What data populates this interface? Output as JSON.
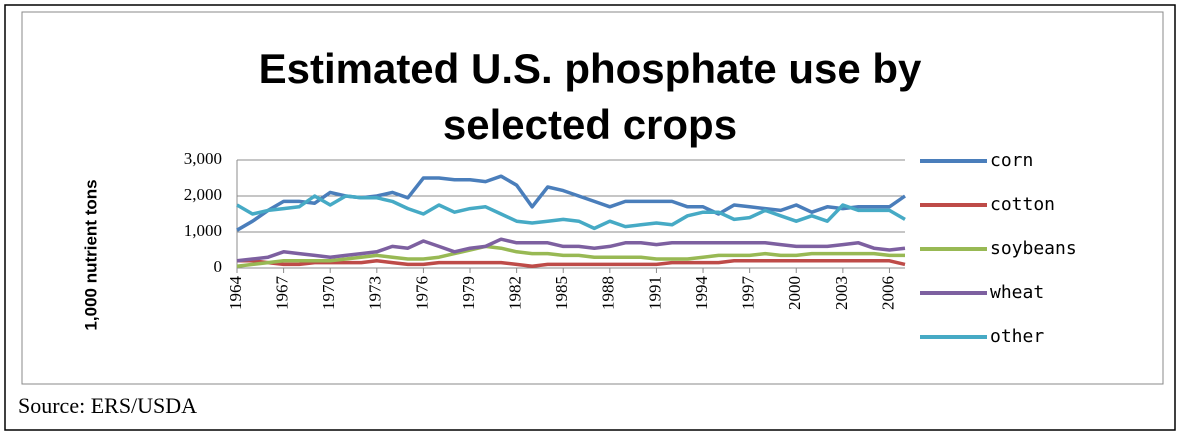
{
  "chart_data": {
    "type": "line",
    "title": "Estimated U.S. phosphate use by selected crops",
    "ylabel": "1,000 nutrient tons",
    "source": "Source: ERS/USDA",
    "x": [
      1964,
      1965,
      1966,
      1967,
      1968,
      1969,
      1970,
      1971,
      1972,
      1973,
      1974,
      1975,
      1976,
      1977,
      1978,
      1979,
      1980,
      1981,
      1982,
      1983,
      1984,
      1985,
      1986,
      1987,
      1988,
      1989,
      1990,
      1991,
      1992,
      1993,
      1994,
      1995,
      1996,
      1997,
      1998,
      1999,
      2000,
      2001,
      2002,
      2003,
      2004,
      2005,
      2006,
      2007
    ],
    "xlim": [
      1964,
      2007
    ],
    "xticks": [
      1964,
      1967,
      1970,
      1973,
      1976,
      1979,
      1982,
      1985,
      1988,
      1991,
      1994,
      1997,
      2000,
      2003,
      2006
    ],
    "ylim": [
      0,
      3000
    ],
    "yticks": [
      0,
      {
        "value": 1000,
        "label": "1,000"
      },
      {
        "value": 2000,
        "label": "2,000"
      },
      {
        "value": 3000,
        "label": "3,000"
      }
    ],
    "grid": true,
    "legend": "right",
    "series": [
      {
        "name": "corn",
        "color": "#4a7ebb",
        "values": [
          1050,
          1300,
          1600,
          1850,
          1850,
          1800,
          2100,
          2000,
          1950,
          2000,
          2100,
          1950,
          2500,
          2500,
          2450,
          2450,
          2400,
          2550,
          2300,
          1700,
          2250,
          2150,
          2000,
          1850,
          1700,
          1850,
          1850,
          1850,
          1850,
          1700,
          1700,
          1500,
          1750,
          1700,
          1650,
          1600,
          1750,
          1550,
          1700,
          1650,
          1700,
          1700,
          1700,
          2000
        ]
      },
      {
        "name": "cotton",
        "color": "#be4b48",
        "values": [
          200,
          200,
          150,
          100,
          100,
          150,
          150,
          150,
          150,
          200,
          150,
          100,
          100,
          150,
          150,
          150,
          150,
          150,
          100,
          50,
          100,
          100,
          100,
          100,
          100,
          100,
          100,
          100,
          150,
          150,
          150,
          150,
          200,
          200,
          200,
          200,
          200,
          200,
          200,
          200,
          200,
          200,
          200,
          100
        ]
      },
      {
        "name": "soybeans",
        "color": "#98b954",
        "values": [
          50,
          100,
          150,
          200,
          200,
          200,
          200,
          250,
          300,
          350,
          300,
          250,
          250,
          300,
          400,
          500,
          600,
          550,
          450,
          400,
          400,
          350,
          350,
          300,
          300,
          300,
          300,
          250,
          250,
          250,
          300,
          350,
          350,
          350,
          400,
          350,
          350,
          400,
          400,
          400,
          400,
          400,
          350,
          350
        ]
      },
      {
        "name": "wheat",
        "color": "#7d60a0",
        "values": [
          200,
          250,
          300,
          450,
          400,
          350,
          300,
          350,
          400,
          450,
          600,
          550,
          750,
          600,
          450,
          550,
          600,
          800,
          700,
          700,
          700,
          600,
          600,
          550,
          600,
          700,
          700,
          650,
          700,
          700,
          700,
          700,
          700,
          700,
          700,
          650,
          600,
          600,
          600,
          650,
          700,
          550,
          500,
          550
        ]
      },
      {
        "name": "other",
        "color": "#46aac5",
        "values": [
          1750,
          1500,
          1600,
          1650,
          1700,
          2000,
          1750,
          2000,
          1950,
          1950,
          1850,
          1650,
          1500,
          1750,
          1550,
          1650,
          1700,
          1500,
          1300,
          1250,
          1300,
          1350,
          1300,
          1100,
          1300,
          1150,
          1200,
          1250,
          1200,
          1450,
          1550,
          1550,
          1350,
          1400,
          1600,
          1450,
          1300,
          1450,
          1300,
          1750,
          1600,
          1600,
          1600,
          1350
        ]
      }
    ]
  }
}
